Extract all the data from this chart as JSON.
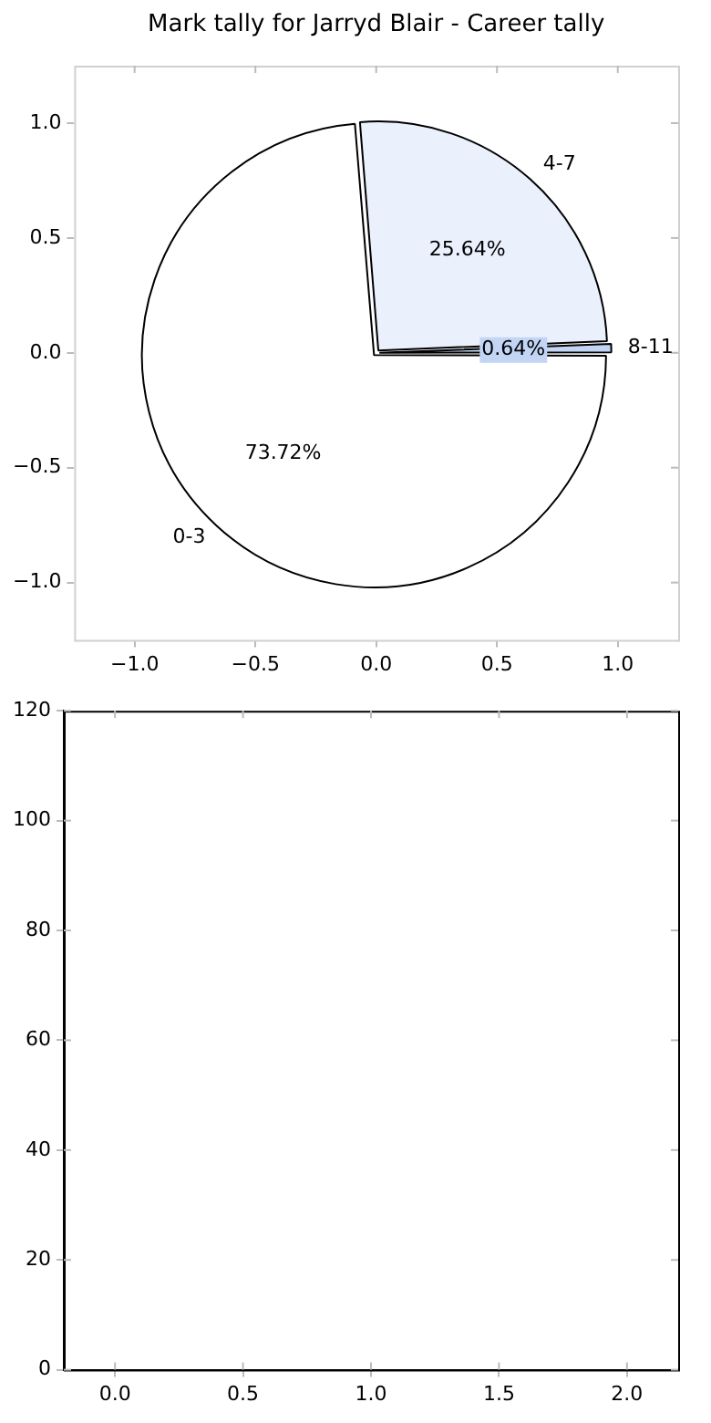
{
  "chart_data": [
    {
      "type": "pie",
      "title": "Mark tally for Jarryd Blair - Career tally",
      "categories": [
        "0-3",
        "4-7",
        "8-11"
      ],
      "values": [
        73.72,
        25.64,
        0.64
      ],
      "colors": [
        "#ffffff",
        "#eaf0fc",
        "#c2d5f5"
      ],
      "value_labels": [
        "73.72%",
        "25.64%",
        "0.64%"
      ]
    },
    {
      "type": "scatter",
      "xlim": [
        -1.25,
        1.25
      ],
      "ylim": [
        -1.25,
        1.25
      ],
      "xticks": [
        {
          "value": -1,
          "label": "−1.0"
        },
        {
          "value": -0.5,
          "label": "−0.5"
        },
        {
          "value": 0,
          "label": "0.0"
        },
        {
          "value": 0.5,
          "label": "0.5"
        },
        {
          "value": 1,
          "label": "1.0"
        }
      ],
      "yticks": [
        {
          "value": -1,
          "label": "−1.0"
        },
        {
          "value": -0.5,
          "label": "−0.5"
        },
        {
          "value": 0,
          "label": "0.0"
        },
        {
          "value": 0.5,
          "label": "0.5"
        },
        {
          "value": 1,
          "label": "1.0"
        }
      ]
    },
    {
      "type": "scatter",
      "xlim": [
        -0.2,
        2.2
      ],
      "ylim": [
        0,
        120
      ],
      "xticks": [
        {
          "value": 0,
          "label": "0.0"
        },
        {
          "value": 0.5,
          "label": "0.5"
        },
        {
          "value": 1,
          "label": "1.0"
        },
        {
          "value": 1.5,
          "label": "1.5"
        },
        {
          "value": 2,
          "label": "2.0"
        }
      ],
      "yticks": [
        0,
        20,
        40,
        60,
        80,
        100,
        120
      ]
    }
  ]
}
